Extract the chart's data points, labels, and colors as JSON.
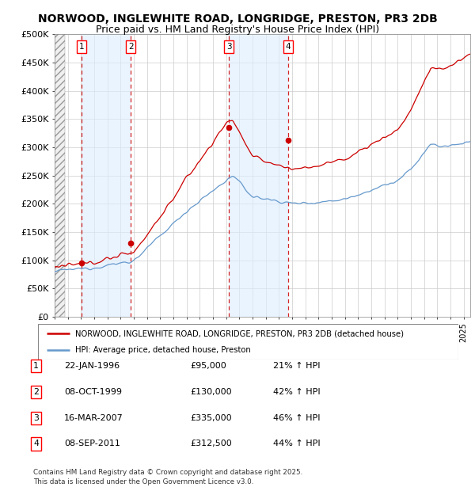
{
  "title": "NORWOOD, INGLEWHITE ROAD, LONGRIDGE, PRESTON, PR3 2DB",
  "subtitle": "Price paid vs. HM Land Registry's House Price Index (HPI)",
  "ylim": [
    0,
    500000
  ],
  "yticks": [
    0,
    50000,
    100000,
    150000,
    200000,
    250000,
    300000,
    350000,
    400000,
    450000,
    500000
  ],
  "ytick_labels": [
    "£0",
    "£50K",
    "£100K",
    "£150K",
    "£200K",
    "£250K",
    "£300K",
    "£350K",
    "£400K",
    "£450K",
    "£500K"
  ],
  "xlim_start": 1994.0,
  "xlim_end": 2025.5,
  "sale_dates": [
    1996.06,
    1999.77,
    2007.21,
    2011.69
  ],
  "sale_prices": [
    95000,
    130000,
    335000,
    312500
  ],
  "sale_labels": [
    "1",
    "2",
    "3",
    "4"
  ],
  "sale_date_strings": [
    "22-JAN-1996",
    "08-OCT-1999",
    "16-MAR-2007",
    "08-SEP-2011"
  ],
  "sale_price_strings": [
    "£95,000",
    "£130,000",
    "£335,000",
    "£312,500"
  ],
  "sale_hpi_strings": [
    "21% ↑ HPI",
    "42% ↑ HPI",
    "46% ↑ HPI",
    "44% ↑ HPI"
  ],
  "legend_line1": "NORWOOD, INGLEWHITE ROAD, LONGRIDGE, PRESTON, PR3 2DB (detached house)",
  "legend_line2": "HPI: Average price, detached house, Preston",
  "footer": "Contains HM Land Registry data © Crown copyright and database right 2025.\nThis data is licensed under the Open Government Licence v3.0.",
  "red_color": "#cc0000",
  "blue_color": "#6699cc",
  "sale_region_color": "#ddeeff",
  "grid_color": "#cccccc",
  "title_fontsize": 10,
  "subtitle_fontsize": 9,
  "tick_fontsize": 8
}
